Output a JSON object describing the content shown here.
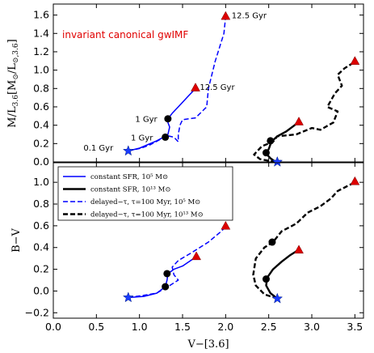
{
  "chart_data": [
    {
      "type": "line",
      "id": "top",
      "ylabel": "M/L",
      "ylabel_sub1": "3.6",
      "ylabel_mid": "[M",
      "ylabel_sub2": "⊙",
      "ylabel_mid2": "/L",
      "ylabel_sub3": "⊙,3.6",
      "ylabel_end": "]",
      "xlim": [
        0.0,
        3.6
      ],
      "ylim": [
        0.0,
        1.72
      ],
      "yticks": [
        0.0,
        0.2,
        0.4,
        0.6,
        0.8,
        1.0,
        1.2,
        1.4,
        1.6
      ],
      "ytick_labels": [
        "0.0",
        "0.2",
        "0.4",
        "0.6",
        "0.8",
        "1.0",
        "1.2",
        "1.4",
        "1.6"
      ],
      "xticks": [
        0.0,
        0.5,
        1.0,
        1.5,
        2.0,
        2.5,
        3.0,
        3.5
      ],
      "inset_text": "invariant canonical gwIMF",
      "series": [
        {
          "id": "cs1e5",
          "color": "#0000ff",
          "dash": "solid",
          "width": 1.5,
          "points": [
            [
              0.87,
              0.12
            ],
            [
              1.0,
              0.15
            ],
            [
              1.1,
              0.19
            ],
            [
              1.2,
              0.23
            ],
            [
              1.28,
              0.27
            ],
            [
              1.33,
              0.3
            ],
            [
              1.35,
              0.38
            ],
            [
              1.33,
              0.43
            ],
            [
              1.33,
              0.47
            ],
            [
              1.38,
              0.53
            ],
            [
              1.45,
              0.6
            ],
            [
              1.55,
              0.7
            ],
            [
              1.65,
              0.8
            ]
          ]
        },
        {
          "id": "cs1e13",
          "color": "#000000",
          "dash": "solid",
          "width": 2.4,
          "points": [
            [
              2.58,
              0.0
            ],
            [
              2.52,
              0.04
            ],
            [
              2.47,
              0.09
            ],
            [
              2.5,
              0.14
            ],
            [
              2.53,
              0.22
            ],
            [
              2.6,
              0.28
            ],
            [
              2.7,
              0.33
            ],
            [
              2.8,
              0.4
            ],
            [
              2.85,
              0.44
            ]
          ]
        },
        {
          "id": "dt1e5",
          "color": "#0000ff",
          "dash": "dashed",
          "width": 1.5,
          "points": [
            [
              0.87,
              0.12
            ],
            [
              1.02,
              0.15
            ],
            [
              1.13,
              0.19
            ],
            [
              1.25,
              0.25
            ],
            [
              1.3,
              0.29
            ],
            [
              1.4,
              0.27
            ],
            [
              1.45,
              0.22
            ],
            [
              1.45,
              0.3
            ],
            [
              1.47,
              0.4
            ],
            [
              1.5,
              0.46
            ],
            [
              1.65,
              0.48
            ],
            [
              1.78,
              0.6
            ],
            [
              1.8,
              0.8
            ],
            [
              1.88,
              1.1
            ],
            [
              1.98,
              1.4
            ],
            [
              2.0,
              1.58
            ]
          ]
        },
        {
          "id": "dt1e13",
          "color": "#000000",
          "dash": "dashed",
          "width": 2.4,
          "points": [
            [
              2.58,
              0.0
            ],
            [
              2.4,
              0.03
            ],
            [
              2.33,
              0.08
            ],
            [
              2.42,
              0.17
            ],
            [
              2.55,
              0.22
            ],
            [
              2.6,
              0.28
            ],
            [
              2.82,
              0.3
            ],
            [
              3.0,
              0.37
            ],
            [
              3.1,
              0.35
            ],
            [
              3.25,
              0.43
            ],
            [
              3.3,
              0.55
            ],
            [
              3.18,
              0.6
            ],
            [
              3.27,
              0.75
            ],
            [
              3.35,
              0.83
            ],
            [
              3.3,
              0.95
            ],
            [
              3.38,
              1.02
            ],
            [
              3.5,
              1.09
            ]
          ]
        }
      ],
      "markers": [
        {
          "kind": "star",
          "color": "#1a3cff",
          "x": 0.87,
          "y": 0.12
        },
        {
          "kind": "star",
          "color": "#1a3cff",
          "x": 2.6,
          "y": 0.0
        },
        {
          "kind": "circle",
          "color": "#000000",
          "x": 1.33,
          "y": 0.47
        },
        {
          "kind": "circle",
          "color": "#000000",
          "x": 1.3,
          "y": 0.27
        },
        {
          "kind": "circle",
          "color": "#000000",
          "x": 2.52,
          "y": 0.23
        },
        {
          "kind": "circle",
          "color": "#000000",
          "x": 2.47,
          "y": 0.1
        },
        {
          "kind": "triangle",
          "color": "#dd0000",
          "x": 1.65,
          "y": 0.81
        },
        {
          "kind": "triangle",
          "color": "#dd0000",
          "x": 2.0,
          "y": 1.59
        },
        {
          "kind": "triangle",
          "color": "#dd0000",
          "x": 2.85,
          "y": 0.44
        },
        {
          "kind": "triangle",
          "color": "#dd0000",
          "x": 3.5,
          "y": 1.1
        }
      ],
      "annotations": [
        {
          "text": "12.5 Gyr",
          "x": 2.07,
          "y": 1.6
        },
        {
          "text": "12.5 Gyr",
          "x": 1.7,
          "y": 0.82
        },
        {
          "text": "1 Gyr",
          "x": 0.95,
          "y": 0.47
        },
        {
          "text": "1 Gyr",
          "x": 0.9,
          "y": 0.27
        },
        {
          "text": "0.1 Gyr",
          "x": 0.35,
          "y": 0.16
        }
      ]
    },
    {
      "type": "line",
      "id": "bottom",
      "ylabel": "B−V",
      "xlabel": "V−[3.6]",
      "xlim": [
        0.0,
        3.6
      ],
      "ylim": [
        -0.25,
        1.18
      ],
      "yticks": [
        -0.2,
        0.0,
        0.2,
        0.4,
        0.6,
        0.8,
        1.0
      ],
      "ytick_labels": [
        "−0.2",
        "0.0",
        "0.2",
        "0.4",
        "0.6",
        "0.8",
        "1.0"
      ],
      "xticks": [
        0.0,
        0.5,
        1.0,
        1.5,
        2.0,
        2.5,
        3.0,
        3.5
      ],
      "xtick_labels": [
        "0.0",
        "0.5",
        "1.0",
        "1.5",
        "2.0",
        "2.5",
        "3.0",
        "3.5"
      ],
      "series": [
        {
          "id": "cs1e5",
          "color": "#0000ff",
          "dash": "solid",
          "width": 1.5,
          "points": [
            [
              0.87,
              -0.06
            ],
            [
              1.05,
              -0.05
            ],
            [
              1.2,
              -0.02
            ],
            [
              1.3,
              0.04
            ],
            [
              1.32,
              0.1
            ],
            [
              1.33,
              0.16
            ],
            [
              1.4,
              0.2
            ],
            [
              1.5,
              0.23
            ],
            [
              1.65,
              0.31
            ]
          ]
        },
        {
          "id": "cs1e13",
          "color": "#000000",
          "dash": "solid",
          "width": 2.4,
          "points": [
            [
              2.6,
              -0.07
            ],
            [
              2.52,
              -0.02
            ],
            [
              2.47,
              0.05
            ],
            [
              2.48,
              0.12
            ],
            [
              2.55,
              0.2
            ],
            [
              2.65,
              0.27
            ],
            [
              2.75,
              0.33
            ],
            [
              2.85,
              0.38
            ]
          ]
        },
        {
          "id": "dt1e5",
          "color": "#0000ff",
          "dash": "dashed",
          "width": 1.5,
          "points": [
            [
              0.87,
              -0.06
            ],
            [
              1.05,
              -0.04
            ],
            [
              1.2,
              -0.02
            ],
            [
              1.35,
              0.05
            ],
            [
              1.45,
              0.1
            ],
            [
              1.4,
              0.15
            ],
            [
              1.38,
              0.22
            ],
            [
              1.45,
              0.28
            ],
            [
              1.6,
              0.35
            ],
            [
              1.8,
              0.45
            ],
            [
              1.95,
              0.55
            ],
            [
              2.0,
              0.59
            ]
          ]
        },
        {
          "id": "dt1e13",
          "color": "#000000",
          "dash": "dashed",
          "width": 2.4,
          "points": [
            [
              2.6,
              -0.07
            ],
            [
              2.45,
              -0.03
            ],
            [
              2.35,
              0.05
            ],
            [
              2.32,
              0.15
            ],
            [
              2.35,
              0.3
            ],
            [
              2.45,
              0.4
            ],
            [
              2.55,
              0.45
            ],
            [
              2.65,
              0.55
            ],
            [
              2.82,
              0.62
            ],
            [
              2.95,
              0.72
            ],
            [
              3.1,
              0.78
            ],
            [
              3.22,
              0.85
            ],
            [
              3.3,
              0.92
            ],
            [
              3.4,
              0.96
            ],
            [
              3.5,
              1.0
            ]
          ]
        }
      ],
      "markers": [
        {
          "kind": "star",
          "color": "#1a3cff",
          "x": 0.87,
          "y": -0.06
        },
        {
          "kind": "star",
          "color": "#1a3cff",
          "x": 2.6,
          "y": -0.07
        },
        {
          "kind": "circle",
          "color": "#000000",
          "x": 1.32,
          "y": 0.16
        },
        {
          "kind": "circle",
          "color": "#000000",
          "x": 1.3,
          "y": 0.04
        },
        {
          "kind": "circle",
          "color": "#000000",
          "x": 2.54,
          "y": 0.45
        },
        {
          "kind": "circle",
          "color": "#000000",
          "x": 2.47,
          "y": 0.11
        },
        {
          "kind": "triangle",
          "color": "#dd0000",
          "x": 1.66,
          "y": 0.32
        },
        {
          "kind": "triangle",
          "color": "#dd0000",
          "x": 2.0,
          "y": 0.6
        },
        {
          "kind": "triangle",
          "color": "#dd0000",
          "x": 2.85,
          "y": 0.38
        },
        {
          "kind": "triangle",
          "color": "#dd0000",
          "x": 3.5,
          "y": 1.01
        }
      ],
      "legend": {
        "placement": "upper-left",
        "entries": [
          {
            "series": "cs1e5",
            "label": "constant SFR,  10⁵ M⊙"
          },
          {
            "series": "cs1e13",
            "label": "constant SFR,  10¹³ M⊙"
          },
          {
            "series": "dt1e5",
            "label": "delayed−τ, τ=100 Myr,  10⁵ M⊙"
          },
          {
            "series": "dt1e13",
            "label": "delayed−τ, τ=100 Myr,  10¹³ M⊙"
          }
        ]
      }
    }
  ]
}
